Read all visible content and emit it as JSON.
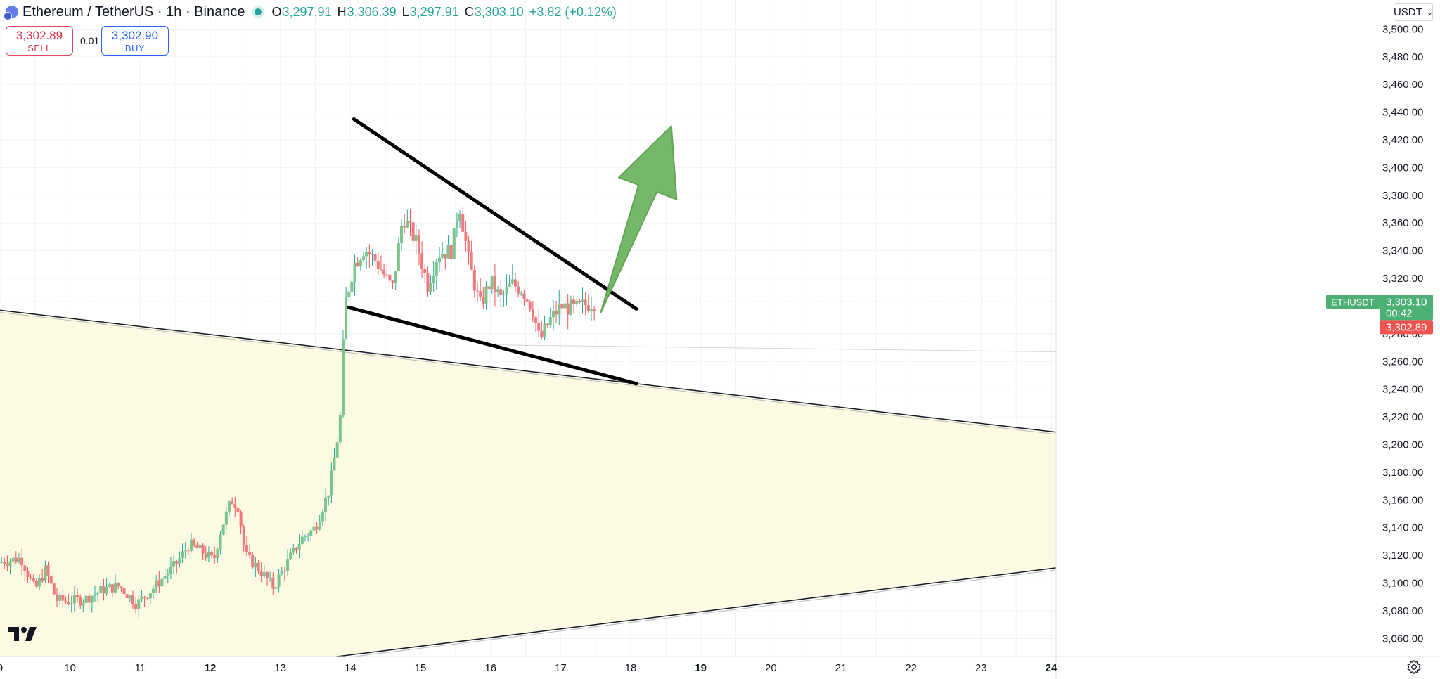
{
  "header": {
    "symbol": "Ethereum / TetherUS · 1h · Binance",
    "open_label": "O",
    "open": "3,297.91",
    "high_label": "H",
    "high": "3,306.39",
    "low_label": "L",
    "low": "3,297.91",
    "close_label": "C",
    "close": "3,303.10",
    "change": "+3.82 (+0.12%)"
  },
  "trade": {
    "sell_price": "3,302.89",
    "sell_label": "SELL",
    "spread": "0.01",
    "buy_price": "3,302.90",
    "buy_label": "BUY"
  },
  "axis": {
    "currency": "USDT"
  },
  "colors": {
    "up": "#26a69a",
    "down": "#ef5350",
    "body_up": "#7cc58a",
    "body_down": "#f07a80",
    "arrow": "#6fb562",
    "zone": "#fdfae4"
  },
  "icons": [
    "tradingview-logo-icon",
    "settings-gear-icon",
    "chevron-down-icon"
  ],
  "chart_data": {
    "type": "candlestick",
    "title": "Ethereum / TetherUS · 1h · Binance",
    "interval": "1h",
    "x_ticks": [
      "9",
      "10",
      "11",
      "12",
      "13",
      "14",
      "15",
      "16",
      "17",
      "18",
      "19",
      "20",
      "21",
      "22",
      "23",
      "24"
    ],
    "x_range_days": [
      9,
      24.07
    ],
    "y_ticks": [
      3060,
      3080,
      3100,
      3120,
      3140,
      3160,
      3180,
      3200,
      3220,
      3240,
      3260,
      3280,
      3300,
      3320,
      3340,
      3360,
      3380,
      3400,
      3420,
      3440,
      3460,
      3480,
      3500
    ],
    "y_tick_labels": [
      "3,060.00",
      "3,080.00",
      "3,100.00",
      "3,120.00",
      "3,140.00",
      "3,160.00",
      "3,180.00",
      "3,200.00",
      "3,220.00",
      "3,240.00",
      "3,260.00",
      "3,280.00",
      "3,300.00",
      "3,320.00",
      "3,340.00",
      "3,360.00",
      "3,380.00",
      "3,400.00",
      "3,420.00",
      "3,440.00",
      "3,460.00",
      "3,480.00",
      "3,500.00"
    ],
    "ylim": [
      3047,
      3521
    ],
    "grid": true,
    "last_price": {
      "symbol": "ETHUSDT",
      "price": "3,303.10",
      "countdown": "00:42",
      "value": 3303.1
    },
    "bid_price": {
      "price": "3,302.89",
      "value": 3302.89
    },
    "price_path": [
      [
        9.0,
        3115
      ],
      [
        9.3,
        3118
      ],
      [
        9.5,
        3095
      ],
      [
        9.65,
        3110
      ],
      [
        9.8,
        3088
      ],
      [
        9.95,
        3087
      ],
      [
        10.2,
        3088
      ],
      [
        10.45,
        3095
      ],
      [
        10.7,
        3098
      ],
      [
        10.95,
        3085
      ],
      [
        11.2,
        3097
      ],
      [
        11.5,
        3113
      ],
      [
        11.7,
        3128
      ],
      [
        11.85,
        3124
      ],
      [
        12.05,
        3116
      ],
      [
        12.15,
        3138
      ],
      [
        12.3,
        3160
      ],
      [
        12.4,
        3155
      ],
      [
        12.5,
        3120
      ],
      [
        12.7,
        3110
      ],
      [
        12.9,
        3097
      ],
      [
        13.1,
        3115
      ],
      [
        13.3,
        3132
      ],
      [
        13.5,
        3140
      ],
      [
        13.7,
        3168
      ],
      [
        13.85,
        3215
      ],
      [
        13.92,
        3300
      ],
      [
        14.05,
        3330
      ],
      [
        14.2,
        3342
      ],
      [
        14.4,
        3330
      ],
      [
        14.6,
        3312
      ],
      [
        14.75,
        3365
      ],
      [
        14.85,
        3355
      ],
      [
        14.95,
        3345
      ],
      [
        15.1,
        3315
      ],
      [
        15.25,
        3338
      ],
      [
        15.45,
        3340
      ],
      [
        15.55,
        3375
      ],
      [
        15.7,
        3330
      ],
      [
        15.85,
        3300
      ],
      [
        16.0,
        3318
      ],
      [
        16.15,
        3305
      ],
      [
        16.3,
        3316
      ],
      [
        16.45,
        3312
      ],
      [
        16.6,
        3298
      ],
      [
        16.7,
        3275
      ],
      [
        16.85,
        3290
      ],
      [
        17.0,
        3300
      ],
      [
        17.2,
        3298
      ],
      [
        17.35,
        3301
      ],
      [
        17.5,
        3303.1
      ]
    ],
    "patterns": [
      {
        "kind": "trendline",
        "from": [
          14.05,
          3435
        ],
        "to": [
          18.08,
          3298
        ]
      },
      {
        "kind": "trendline",
        "from": [
          13.98,
          3299
        ],
        "to": [
          18.08,
          3244
        ]
      },
      {
        "kind": "channel_line",
        "from": [
          9.0,
          3297
        ],
        "to": [
          24.07,
          3209
        ]
      },
      {
        "kind": "channel_line",
        "from": [
          9.0,
          3017
        ],
        "to": [
          24.07,
          3111
        ]
      },
      {
        "kind": "arrow",
        "direction": "up",
        "from": [
          17.57,
          3295
        ],
        "to": [
          18.58,
          3430
        ]
      }
    ]
  }
}
